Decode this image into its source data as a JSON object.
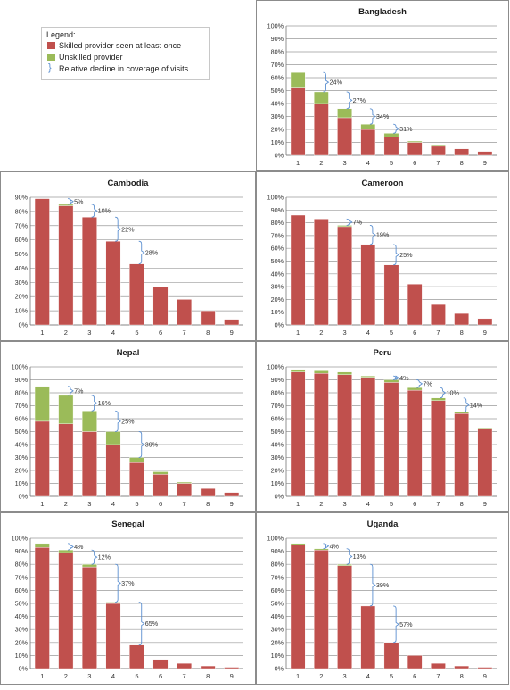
{
  "legend": {
    "title": "Legend:",
    "items": [
      {
        "label": "Skilled provider seen at least once",
        "color": "#c0504d"
      },
      {
        "label": "Unskilled provider",
        "color": "#9bbb59"
      },
      {
        "label": "Relative decline in coverage of visits",
        "color": "#5b8fd0"
      }
    ]
  },
  "chart_data": [
    {
      "type": "bar",
      "stacked": true,
      "title": "Bangladesh",
      "categories": [
        "1",
        "2",
        "3",
        "4",
        "5",
        "6",
        "7",
        "8",
        "9"
      ],
      "ylim": [
        0,
        100
      ],
      "yticks": [
        0,
        10,
        20,
        30,
        40,
        50,
        60,
        70,
        80,
        90,
        100
      ],
      "ytick_suffix": "%",
      "grid": true,
      "series": [
        {
          "values": [
            52,
            40,
            29,
            20,
            14,
            10,
            7,
            5,
            3
          ],
          "color": "#c0504d"
        },
        {
          "values": [
            12,
            9,
            7,
            4,
            3,
            1,
            1,
            0,
            0
          ],
          "color": "#9bbb59"
        }
      ],
      "annotations": [
        {
          "between": [
            "1",
            "2"
          ],
          "label": "24%"
        },
        {
          "between": [
            "2",
            "3"
          ],
          "label": "27%"
        },
        {
          "between": [
            "3",
            "4"
          ],
          "label": "34%"
        },
        {
          "between": [
            "4",
            "5"
          ],
          "label": "31%"
        }
      ]
    },
    {
      "type": "bar",
      "stacked": true,
      "title": "Cambodia",
      "categories": [
        "1",
        "2",
        "3",
        "4",
        "5",
        "6",
        "7",
        "8",
        "9"
      ],
      "ylim": [
        0,
        90
      ],
      "yticks": [
        0,
        10,
        20,
        30,
        40,
        50,
        60,
        70,
        80,
        90
      ],
      "ytick_suffix": "%",
      "grid": true,
      "series": [
        {
          "values": [
            89,
            84,
            76,
            59,
            43,
            27,
            18,
            10,
            4
          ],
          "color": "#c0504d"
        },
        {
          "values": [
            0,
            1,
            0,
            0,
            0,
            0,
            0,
            0,
            0
          ],
          "color": "#9bbb59"
        }
      ],
      "annotations": [
        {
          "between": [
            "1",
            "2"
          ],
          "label": "5%"
        },
        {
          "between": [
            "2",
            "3"
          ],
          "label": "10%"
        },
        {
          "between": [
            "3",
            "4"
          ],
          "label": "22%"
        },
        {
          "between": [
            "4",
            "5"
          ],
          "label": "28%"
        }
      ]
    },
    {
      "type": "bar",
      "stacked": true,
      "title": "Cameroon",
      "categories": [
        "1",
        "2",
        "3",
        "4",
        "5",
        "6",
        "7",
        "8",
        "9"
      ],
      "ylim": [
        0,
        100
      ],
      "yticks": [
        0,
        10,
        20,
        30,
        40,
        50,
        60,
        70,
        80,
        90,
        100
      ],
      "ytick_suffix": "%",
      "grid": true,
      "series": [
        {
          "values": [
            86,
            83,
            77,
            63,
            47,
            32,
            16,
            9,
            5
          ],
          "color": "#c0504d"
        },
        {
          "values": [
            0,
            0,
            1,
            0,
            0,
            0,
            0,
            0,
            0
          ],
          "color": "#9bbb59"
        }
      ],
      "annotations": [
        {
          "between": [
            "2",
            "3"
          ],
          "label": "7%"
        },
        {
          "between": [
            "3",
            "4"
          ],
          "label": "19%"
        },
        {
          "between": [
            "4",
            "5"
          ],
          "label": "25%"
        }
      ]
    },
    {
      "type": "bar",
      "stacked": true,
      "title": "Nepal",
      "categories": [
        "1",
        "2",
        "3",
        "4",
        "5",
        "6",
        "7",
        "8",
        "9"
      ],
      "ylim": [
        0,
        100
      ],
      "yticks": [
        0,
        10,
        20,
        30,
        40,
        50,
        60,
        70,
        80,
        90,
        100
      ],
      "ytick_suffix": "%",
      "grid": true,
      "series": [
        {
          "values": [
            58,
            56,
            50,
            40,
            26,
            17,
            10,
            6,
            3
          ],
          "color": "#c0504d"
        },
        {
          "values": [
            27,
            22,
            16,
            10,
            4,
            2,
            1,
            0,
            0
          ],
          "color": "#9bbb59"
        }
      ],
      "annotations": [
        {
          "between": [
            "1",
            "2"
          ],
          "label": "7%"
        },
        {
          "between": [
            "2",
            "3"
          ],
          "label": "16%"
        },
        {
          "between": [
            "3",
            "4"
          ],
          "label": "25%"
        },
        {
          "between": [
            "4",
            "5"
          ],
          "label": "39%"
        }
      ]
    },
    {
      "type": "bar",
      "stacked": true,
      "title": "Peru",
      "categories": [
        "1",
        "2",
        "3",
        "4",
        "5",
        "6",
        "7",
        "8",
        "9"
      ],
      "ylim": [
        0,
        100
      ],
      "yticks": [
        0,
        10,
        20,
        30,
        40,
        50,
        60,
        70,
        80,
        90,
        100
      ],
      "ytick_suffix": "%",
      "grid": true,
      "series": [
        {
          "values": [
            96,
            95,
            94,
            92,
            88,
            82,
            74,
            64,
            52
          ],
          "color": "#c0504d"
        },
        {
          "values": [
            2,
            2,
            2,
            1,
            2,
            2,
            2,
            1,
            1
          ],
          "color": "#9bbb59"
        }
      ],
      "annotations": [
        {
          "between": [
            "4",
            "5"
          ],
          "label": "4%"
        },
        {
          "between": [
            "5",
            "6"
          ],
          "label": "7%"
        },
        {
          "between": [
            "6",
            "7"
          ],
          "label": "10%"
        },
        {
          "between": [
            "7",
            "8"
          ],
          "label": "14%"
        }
      ]
    },
    {
      "type": "bar",
      "stacked": true,
      "title": "Senegal",
      "categories": [
        "1",
        "2",
        "3",
        "4",
        "5",
        "6",
        "7",
        "8",
        "9"
      ],
      "ylim": [
        0,
        100
      ],
      "yticks": [
        0,
        10,
        20,
        30,
        40,
        50,
        60,
        70,
        80,
        90,
        100
      ],
      "ytick_suffix": "%",
      "grid": true,
      "series": [
        {
          "values": [
            93,
            89,
            78,
            50,
            18,
            7,
            4,
            2,
            1
          ],
          "color": "#c0504d"
        },
        {
          "values": [
            3,
            2,
            2,
            1,
            0,
            0,
            0,
            0,
            0
          ],
          "color": "#9bbb59"
        }
      ],
      "annotations": [
        {
          "between": [
            "1",
            "2"
          ],
          "label": "4%"
        },
        {
          "between": [
            "2",
            "3"
          ],
          "label": "12%"
        },
        {
          "between": [
            "3",
            "4"
          ],
          "label": "37%"
        },
        {
          "between": [
            "4",
            "5"
          ],
          "label": "65%"
        }
      ]
    },
    {
      "type": "bar",
      "stacked": true,
      "title": "Uganda",
      "categories": [
        "1",
        "2",
        "3",
        "4",
        "5",
        "6",
        "7",
        "8",
        "9"
      ],
      "ylim": [
        0,
        100
      ],
      "yticks": [
        0,
        10,
        20,
        30,
        40,
        50,
        60,
        70,
        80,
        90,
        100
      ],
      "ytick_suffix": "%",
      "grid": true,
      "series": [
        {
          "values": [
            95,
            91,
            79,
            48,
            20,
            10,
            4,
            2,
            1
          ],
          "color": "#c0504d"
        },
        {
          "values": [
            1,
            1,
            1,
            0,
            0,
            0,
            0,
            0,
            0
          ],
          "color": "#9bbb59"
        }
      ],
      "annotations": [
        {
          "between": [
            "1",
            "2"
          ],
          "label": "4%"
        },
        {
          "between": [
            "2",
            "3"
          ],
          "label": "13%"
        },
        {
          "between": [
            "3",
            "4"
          ],
          "label": "39%"
        },
        {
          "between": [
            "4",
            "5"
          ],
          "label": "57%"
        }
      ]
    }
  ]
}
